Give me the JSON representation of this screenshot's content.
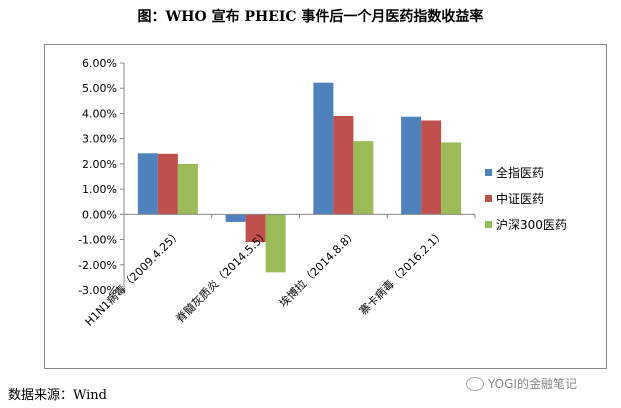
{
  "title": "图：WHO 宣布 PHEIC 事件后一个月医药指数收益率",
  "source": "数据来源：Wind",
  "watermark": "YOGI的金融笔记",
  "chart_data": {
    "type": "bar",
    "categories": [
      "H1N1病毒（2009.4.25）",
      "脊髓灰质炎（2014.5.5）",
      "埃博拉（2014.8.8）",
      "寨卡病毒（2016.2.1）"
    ],
    "series": [
      {
        "name": "全指医药",
        "color": "#4F81BD",
        "values": [
          2.42,
          -0.3,
          5.22,
          3.87
        ]
      },
      {
        "name": "中证医药",
        "color": "#C0504D",
        "values": [
          2.4,
          -1.1,
          3.9,
          3.72
        ]
      },
      {
        "name": "沪深300医药",
        "color": "#9BBB59",
        "values": [
          2.0,
          -2.3,
          2.9,
          2.85
        ]
      }
    ],
    "ylim": [
      -3,
      6
    ],
    "yticks": [
      "6.00%",
      "5.00%",
      "4.00%",
      "3.00%",
      "2.00%",
      "1.00%",
      "0.00%",
      "-1.00%",
      "-2.00%",
      "-3.00%"
    ],
    "legend_position": "right",
    "grid": false
  }
}
